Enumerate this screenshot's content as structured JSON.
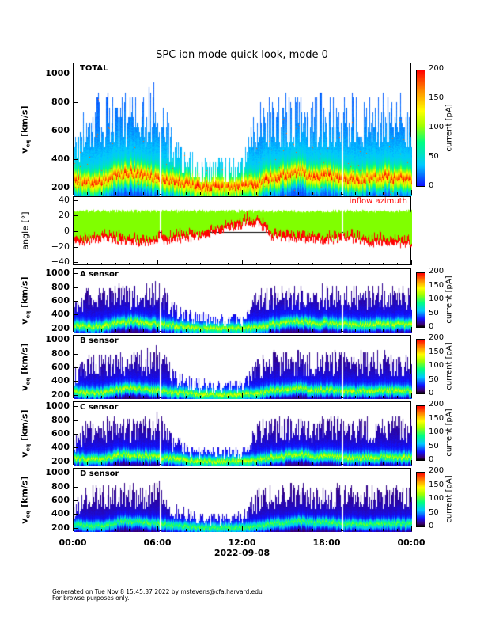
{
  "chart_data": {
    "type": "heatmap",
    "title": "SPC ion mode quick look, mode 0",
    "xlabel": "2022-09-08",
    "x_tick_labels": [
      "00:00",
      "06:00",
      "12:00",
      "18:00",
      "00:00"
    ],
    "x_range_hours": [
      0,
      24
    ],
    "data_gaps_hours": [
      [
        6.1,
        6.22
      ],
      [
        19.0,
        19.12
      ]
    ],
    "hours": [
      0,
      1,
      2,
      3,
      4,
      5,
      6,
      7,
      8,
      9,
      10,
      11,
      12,
      13,
      14,
      15,
      16,
      17,
      18,
      19,
      20,
      21,
      22,
      23,
      24
    ],
    "velocity_cutoff_kms": [
      600,
      840,
      870,
      870,
      870,
      870,
      1000,
      600,
      500,
      440,
      440,
      440,
      440,
      800,
      870,
      870,
      870,
      870,
      870,
      870,
      870,
      870,
      870,
      870,
      870
    ],
    "core_velocity_kms": [
      250,
      230,
      230,
      280,
      300,
      280,
      260,
      240,
      220,
      200,
      200,
      200,
      205,
      220,
      260,
      280,
      300,
      270,
      280,
      260,
      250,
      260,
      270,
      260,
      250
    ],
    "panels": [
      {
        "label": "TOTAL",
        "ylabel_main": "v",
        "ylabel_sub": "eq",
        "ylabel_unit": " [km/s]",
        "ylim": [
          150,
          1075
        ],
        "yticks": [
          "200",
          "400",
          "600",
          "800",
          "1000"
        ],
        "colorbar": {
          "label": "current [pA]",
          "ticks": [
            "0",
            "50",
            "100",
            "150",
            "200"
          ],
          "range": [
            0,
            200
          ]
        }
      },
      {
        "label": "A sensor",
        "ylabel_main": "v",
        "ylabel_sub": "eq",
        "ylabel_unit": " [km/s]",
        "ylim": [
          150,
          1075
        ],
        "yticks": [
          "200",
          "400",
          "600",
          "800",
          "1000"
        ],
        "colorbar": {
          "label": "current [pA]",
          "ticks": [
            "0",
            "50",
            "100",
            "150",
            "200"
          ],
          "range": [
            0,
            200
          ]
        }
      },
      {
        "label": "B sensor",
        "ylabel_main": "v",
        "ylabel_sub": "eq",
        "ylabel_unit": " [km/s]",
        "ylim": [
          150,
          1075
        ],
        "yticks": [
          "200",
          "400",
          "600",
          "800",
          "1000"
        ],
        "colorbar": {
          "label": "current [pA]",
          "ticks": [
            "0",
            "50",
            "100",
            "150",
            "200"
          ],
          "range": [
            0,
            200
          ]
        }
      },
      {
        "label": "C sensor",
        "ylabel_main": "v",
        "ylabel_sub": "eq",
        "ylabel_unit": " [km/s]",
        "ylim": [
          150,
          1075
        ],
        "yticks": [
          "200",
          "400",
          "600",
          "800",
          "1000"
        ],
        "colorbar": {
          "label": "current [pA]",
          "ticks": [
            "0",
            "50",
            "100",
            "150",
            "200"
          ],
          "range": [
            0,
            200
          ]
        }
      },
      {
        "label": "D sensor",
        "ylabel_main": "v",
        "ylabel_sub": "eq",
        "ylabel_unit": " [km/s]",
        "ylim": [
          150,
          1075
        ],
        "yticks": [
          "200",
          "400",
          "600",
          "800",
          "1000"
        ],
        "colorbar": {
          "label": "current [pA]",
          "ticks": [
            "0",
            "50",
            "100",
            "150",
            "200"
          ],
          "range": [
            0,
            200
          ]
        }
      }
    ],
    "angle_panel": {
      "ylabel": "angle [°]",
      "ylim": [
        -44,
        45
      ],
      "yticks": [
        "40",
        "20",
        "0",
        "−20",
        "−40"
      ],
      "legend": "inflow azimuth",
      "azimuth_color": "#ff0000",
      "other_color": "#80ff00",
      "azimuth_low_deg": [
        -15,
        -12,
        -8,
        -10,
        -12,
        -15,
        -12,
        -10,
        -8,
        -5,
        0,
        5,
        10,
        12,
        -5,
        -10,
        -8,
        -10,
        -12,
        -8,
        -10,
        -15,
        -12,
        -15,
        -15
      ],
      "upper_deg": 27
    }
  },
  "footer": {
    "line1": "Generated on Tue Nov  8 15:45:37 2022 by mstevens@cfa.harvard.edu",
    "line2": "For browse purposes only."
  }
}
